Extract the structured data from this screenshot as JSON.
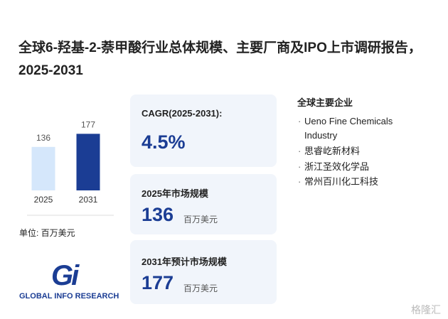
{
  "title": "全球6-羟基-2-萘甲酸行业总体规模、主要厂商及IPO上市调研报告，2025-2031",
  "chart_data": {
    "type": "bar",
    "categories": [
      "2025",
      "2031"
    ],
    "values": [
      136,
      177
    ],
    "colors": [
      "#d5e7fb",
      "#1b3d94"
    ],
    "ylim": [
      0,
      200
    ],
    "unit_note": "单位: 百万美元"
  },
  "cards": [
    {
      "label": "CAGR(2025-2031):",
      "value": "4.5%"
    },
    {
      "label": "2025年市场规模",
      "unit": "百万美元"
    },
    {
      "label": "2031年预计市场规模",
      "unit": "百万美元"
    }
  ],
  "companies": {
    "title": "全球主要企业",
    "items": [
      "Ueno Fine Chemicals Industry",
      "思睿屹新材料",
      "浙江圣效化学品",
      "常州百川化工科技"
    ]
  },
  "logo": {
    "mark": "Gi",
    "text": "GLOBAL INFO RESEARCH"
  },
  "watermark": "格隆汇"
}
